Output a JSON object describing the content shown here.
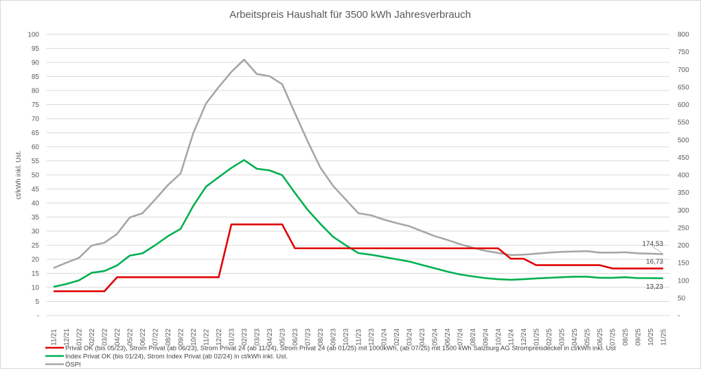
{
  "chart_data": {
    "type": "line",
    "title": "Arbeitspreis Haushalt für 3500 kWh Jahresverbrauch",
    "ylabel": "ct/kWh inkl. Ust.",
    "ylim": [
      0,
      100
    ],
    "y2lim": [
      0,
      800
    ],
    "yticks": [
      "-",
      "5",
      "10",
      "15",
      "20",
      "25",
      "30",
      "35",
      "40",
      "45",
      "50",
      "55",
      "60",
      "65",
      "70",
      "75",
      "80",
      "85",
      "90",
      "95",
      "100"
    ],
    "y2ticks": [
      "-",
      "50",
      "100",
      "150",
      "200",
      "250",
      "300",
      "350",
      "400",
      "450",
      "500",
      "550",
      "600",
      "650",
      "700",
      "750",
      "800"
    ],
    "grid": true,
    "legend_position": "bottom-left",
    "categories": [
      "11/21",
      "12/21",
      "01/22",
      "02/22",
      "03/22",
      "04/22",
      "05/22",
      "06/22",
      "07/22",
      "08/22",
      "09/22",
      "10/22",
      "11/22",
      "12/22",
      "01/23",
      "02/23",
      "03/23",
      "04/23",
      "05/23",
      "06/23",
      "07/23",
      "08/23",
      "09/23",
      "10/23",
      "11/23",
      "12/23",
      "01/24",
      "02/24",
      "03/24",
      "04/23",
      "05/24",
      "06/24",
      "07/24",
      "08/24",
      "09/24",
      "10/24",
      "11/24",
      "12/24",
      "01/25",
      "02/25",
      "03/25",
      "04/25",
      "05/25",
      "06/25",
      "07/25",
      "08/25",
      "09/25",
      "10/25",
      "11/25"
    ],
    "series": [
      {
        "name": "Privat OK (bis 05/23), Strom Privat (ab 06/23), Strom Privat 24 (ab 11/24), Strom Privat 24 (ab 01/25) mit 1000kWh, (ab 07/25) mit 1500 kWh Salzburg AG Strompreisdeckel in ct/kWh inkl. Ust",
        "axis": "left",
        "color": "#e00000",
        "values": [
          8.6,
          8.6,
          8.6,
          8.6,
          8.6,
          13.6,
          13.6,
          13.6,
          13.6,
          13.6,
          13.6,
          13.6,
          13.6,
          13.6,
          32.4,
          32.4,
          32.4,
          32.4,
          32.4,
          23.9,
          23.9,
          23.9,
          23.9,
          23.9,
          23.9,
          23.9,
          23.9,
          23.9,
          23.9,
          23.9,
          23.9,
          23.9,
          23.9,
          23.9,
          23.9,
          23.9,
          20.2,
          20.2,
          17.9,
          17.9,
          17.9,
          17.9,
          17.9,
          17.9,
          16.73,
          16.73,
          16.73,
          16.73,
          16.73
        ],
        "end_label": "16,73"
      },
      {
        "name": "Index Privat OK (bis 01/24), Strom Index Privat (ab 02/24) in ct/kWh inkl. Ust.",
        "axis": "left",
        "color": "#00b050",
        "values": [
          10.2,
          11.2,
          12.5,
          15.2,
          15.8,
          17.8,
          21.3,
          22.1,
          25,
          28.2,
          30.8,
          39,
          45.8,
          49.2,
          52.5,
          55.3,
          52.2,
          51.6,
          49.9,
          43.6,
          37.6,
          32.6,
          28,
          25,
          22.2,
          21.6,
          20.8,
          20,
          19.2,
          18,
          16.8,
          15.6,
          14.6,
          13.9,
          13.3,
          12.9,
          12.7,
          12.9,
          13.2,
          13.4,
          13.6,
          13.8,
          13.8,
          13.4,
          13.4,
          13.6,
          13.3,
          13.3,
          13.23
        ],
        "end_label": "13,23"
      },
      {
        "name": "ÖSPI",
        "axis": "right",
        "color": "#a6a6a6",
        "values": [
          135,
          150,
          164,
          199,
          207,
          232,
          279,
          291,
          330,
          371,
          404,
          519,
          603,
          650,
          693,
          728,
          687,
          681,
          658,
          576,
          496,
          421,
          369,
          330,
          291,
          285,
          273,
          263,
          254,
          240,
          226,
          215,
          203,
          193,
          184,
          178,
          172,
          173,
          176,
          179,
          181,
          182,
          183,
          179,
          179,
          180,
          177,
          176,
          174.53
        ],
        "end_label": "174,53"
      }
    ]
  }
}
